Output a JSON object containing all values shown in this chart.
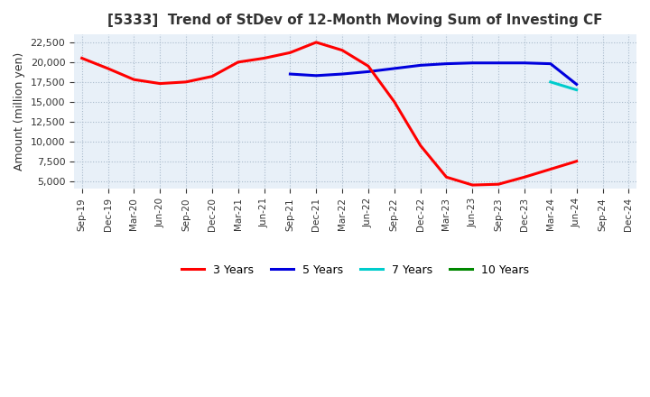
{
  "title": "[5333]  Trend of StDev of 12-Month Moving Sum of Investing CF",
  "ylabel": "Amount (million yen)",
  "ylim": [
    4000,
    23500
  ],
  "yticks": [
    5000,
    7500,
    10000,
    12500,
    15000,
    17500,
    20000,
    22500
  ],
  "background_color": "#e8f0f8",
  "legend_labels": [
    "3 Years",
    "5 Years",
    "7 Years",
    "10 Years"
  ],
  "legend_colors": [
    "#ff0000",
    "#0000dd",
    "#00cccc",
    "#008800"
  ],
  "x_labels": [
    "Sep-19",
    "Dec-19",
    "Mar-20",
    "Jun-20",
    "Sep-20",
    "Dec-20",
    "Mar-21",
    "Jun-21",
    "Sep-21",
    "Dec-21",
    "Mar-22",
    "Jun-22",
    "Sep-22",
    "Dec-22",
    "Mar-23",
    "Jun-23",
    "Sep-23",
    "Dec-23",
    "Mar-24",
    "Jun-24",
    "Sep-24",
    "Dec-24"
  ],
  "series_3y": [
    20500,
    19200,
    17800,
    17300,
    17500,
    18200,
    20000,
    20500,
    21200,
    22500,
    21500,
    19500,
    15000,
    9500,
    5500,
    4500,
    4600,
    5500,
    6500,
    7500,
    null,
    null
  ],
  "series_5y": [
    null,
    null,
    null,
    null,
    null,
    null,
    null,
    null,
    18500,
    18300,
    18500,
    18800,
    19200,
    19600,
    19800,
    19900,
    19900,
    19900,
    19800,
    17200,
    null,
    null
  ],
  "series_7y": [
    null,
    null,
    null,
    null,
    null,
    null,
    null,
    null,
    null,
    null,
    null,
    null,
    null,
    null,
    null,
    null,
    null,
    null,
    17500,
    16500,
    null,
    null
  ],
  "series_10y": [
    null,
    null,
    null,
    null,
    null,
    null,
    null,
    null,
    null,
    null,
    null,
    null,
    null,
    null,
    null,
    null,
    null,
    null,
    null,
    null,
    null,
    null
  ]
}
